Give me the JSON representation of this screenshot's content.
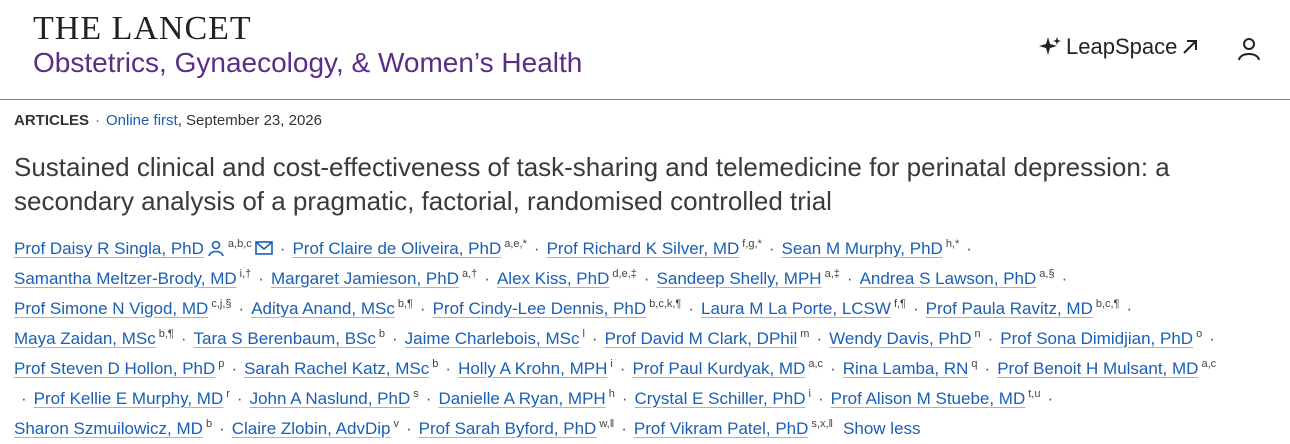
{
  "header": {
    "journal": "THE LANCET",
    "subtitle": "Obstetrics, Gynaecology, & Women’s Health",
    "leapspace": "LeapSpace"
  },
  "meta": {
    "type": "ARTICLES",
    "separator": "·",
    "status": "Online first",
    "date": ", September 23, 2026"
  },
  "title": "Sustained clinical and cost-effectiveness of task-sharing and telemedicine for perinatal depression: a secondary analysis of a pragmatic, factorial, randomised controlled trial",
  "author_separator": "·",
  "author_lines": [
    [
      {
        "name": "Prof Daisy R Singla, PhD",
        "affiliations": "a,b,c"
      },
      {
        "name": "Prof Claire de Oliveira, PhD",
        "affiliations": "a,e,*"
      },
      {
        "name": "Prof Richard K Silver, MD",
        "affiliations": "f,g,*"
      },
      {
        "name": "Sean M Murphy, PhD",
        "affiliations": "h,*"
      }
    ],
    [
      {
        "name": "Samantha Meltzer-Brody, MD",
        "affiliations": "i,†"
      },
      {
        "name": "Margaret Jamieson, PhD",
        "affiliations": "a,†"
      },
      {
        "name": "Alex Kiss, PhD",
        "affiliations": "d,e,‡"
      },
      {
        "name": "Sandeep Shelly, MPH",
        "affiliations": "a,‡"
      },
      {
        "name": "Andrea S Lawson, PhD",
        "affiliations": "a,§"
      }
    ],
    [
      {
        "name": "Prof Simone N Vigod, MD",
        "affiliations": "c,j,§"
      },
      {
        "name": "Aditya Anand, MSc",
        "affiliations": "b,¶"
      },
      {
        "name": "Prof Cindy-Lee Dennis, PhD",
        "affiliations": "b,c,k,¶"
      },
      {
        "name": "Laura M La Porte, LCSW",
        "affiliations": "f,¶"
      },
      {
        "name": "Prof Paula Ravitz, MD",
        "affiliations": "b,c,¶"
      }
    ],
    [
      {
        "name": "Maya Zaidan, MSc",
        "affiliations": "b,¶"
      },
      {
        "name": "Tara S Berenbaum, BSc",
        "affiliations": "b"
      },
      {
        "name": "Jaime Charlebois, MSc",
        "affiliations": "l"
      },
      {
        "name": "Prof David M Clark, DPhil",
        "affiliations": "m"
      },
      {
        "name": "Wendy Davis, PhD",
        "affiliations": "n"
      },
      {
        "name": "Prof Sona Dimidjian, PhD",
        "affiliations": "o"
      }
    ],
    [
      {
        "name": "Prof Steven D Hollon, PhD",
        "affiliations": "p"
      },
      {
        "name": "Sarah Rachel Katz, MSc",
        "affiliations": "b"
      },
      {
        "name": "Holly A Krohn, MPH",
        "affiliations": "i"
      },
      {
        "name": "Prof Paul Kurdyak, MD",
        "affiliations": "a,c"
      },
      {
        "name": "Rina Lamba, RN",
        "affiliations": "q"
      },
      {
        "name": "Prof Benoit H Mulsant, MD",
        "affiliations": "a,c"
      }
    ],
    [
      {
        "name": "Prof Kellie E Murphy, MD",
        "affiliations": "r"
      },
      {
        "name": "John A Naslund, PhD",
        "affiliations": "s"
      },
      {
        "name": "Danielle A Ryan, MPH",
        "affiliations": "h"
      },
      {
        "name": "Crystal E Schiller, PhD",
        "affiliations": "i"
      },
      {
        "name": "Prof Alison M Stuebe, MD",
        "affiliations": "t,u"
      }
    ],
    [
      {
        "name": "Sharon Szmuilowicz, MD",
        "affiliations": "b"
      },
      {
        "name": "Claire Zlobin, AdvDip",
        "affiliations": "v"
      },
      {
        "name": "Prof Sarah Byford, PhD",
        "affiliations": "w,‖"
      },
      {
        "name": "Prof Vikram Patel, PhD",
        "affiliations": "s,x,‖"
      }
    ]
  ],
  "show_less": "Show less"
}
